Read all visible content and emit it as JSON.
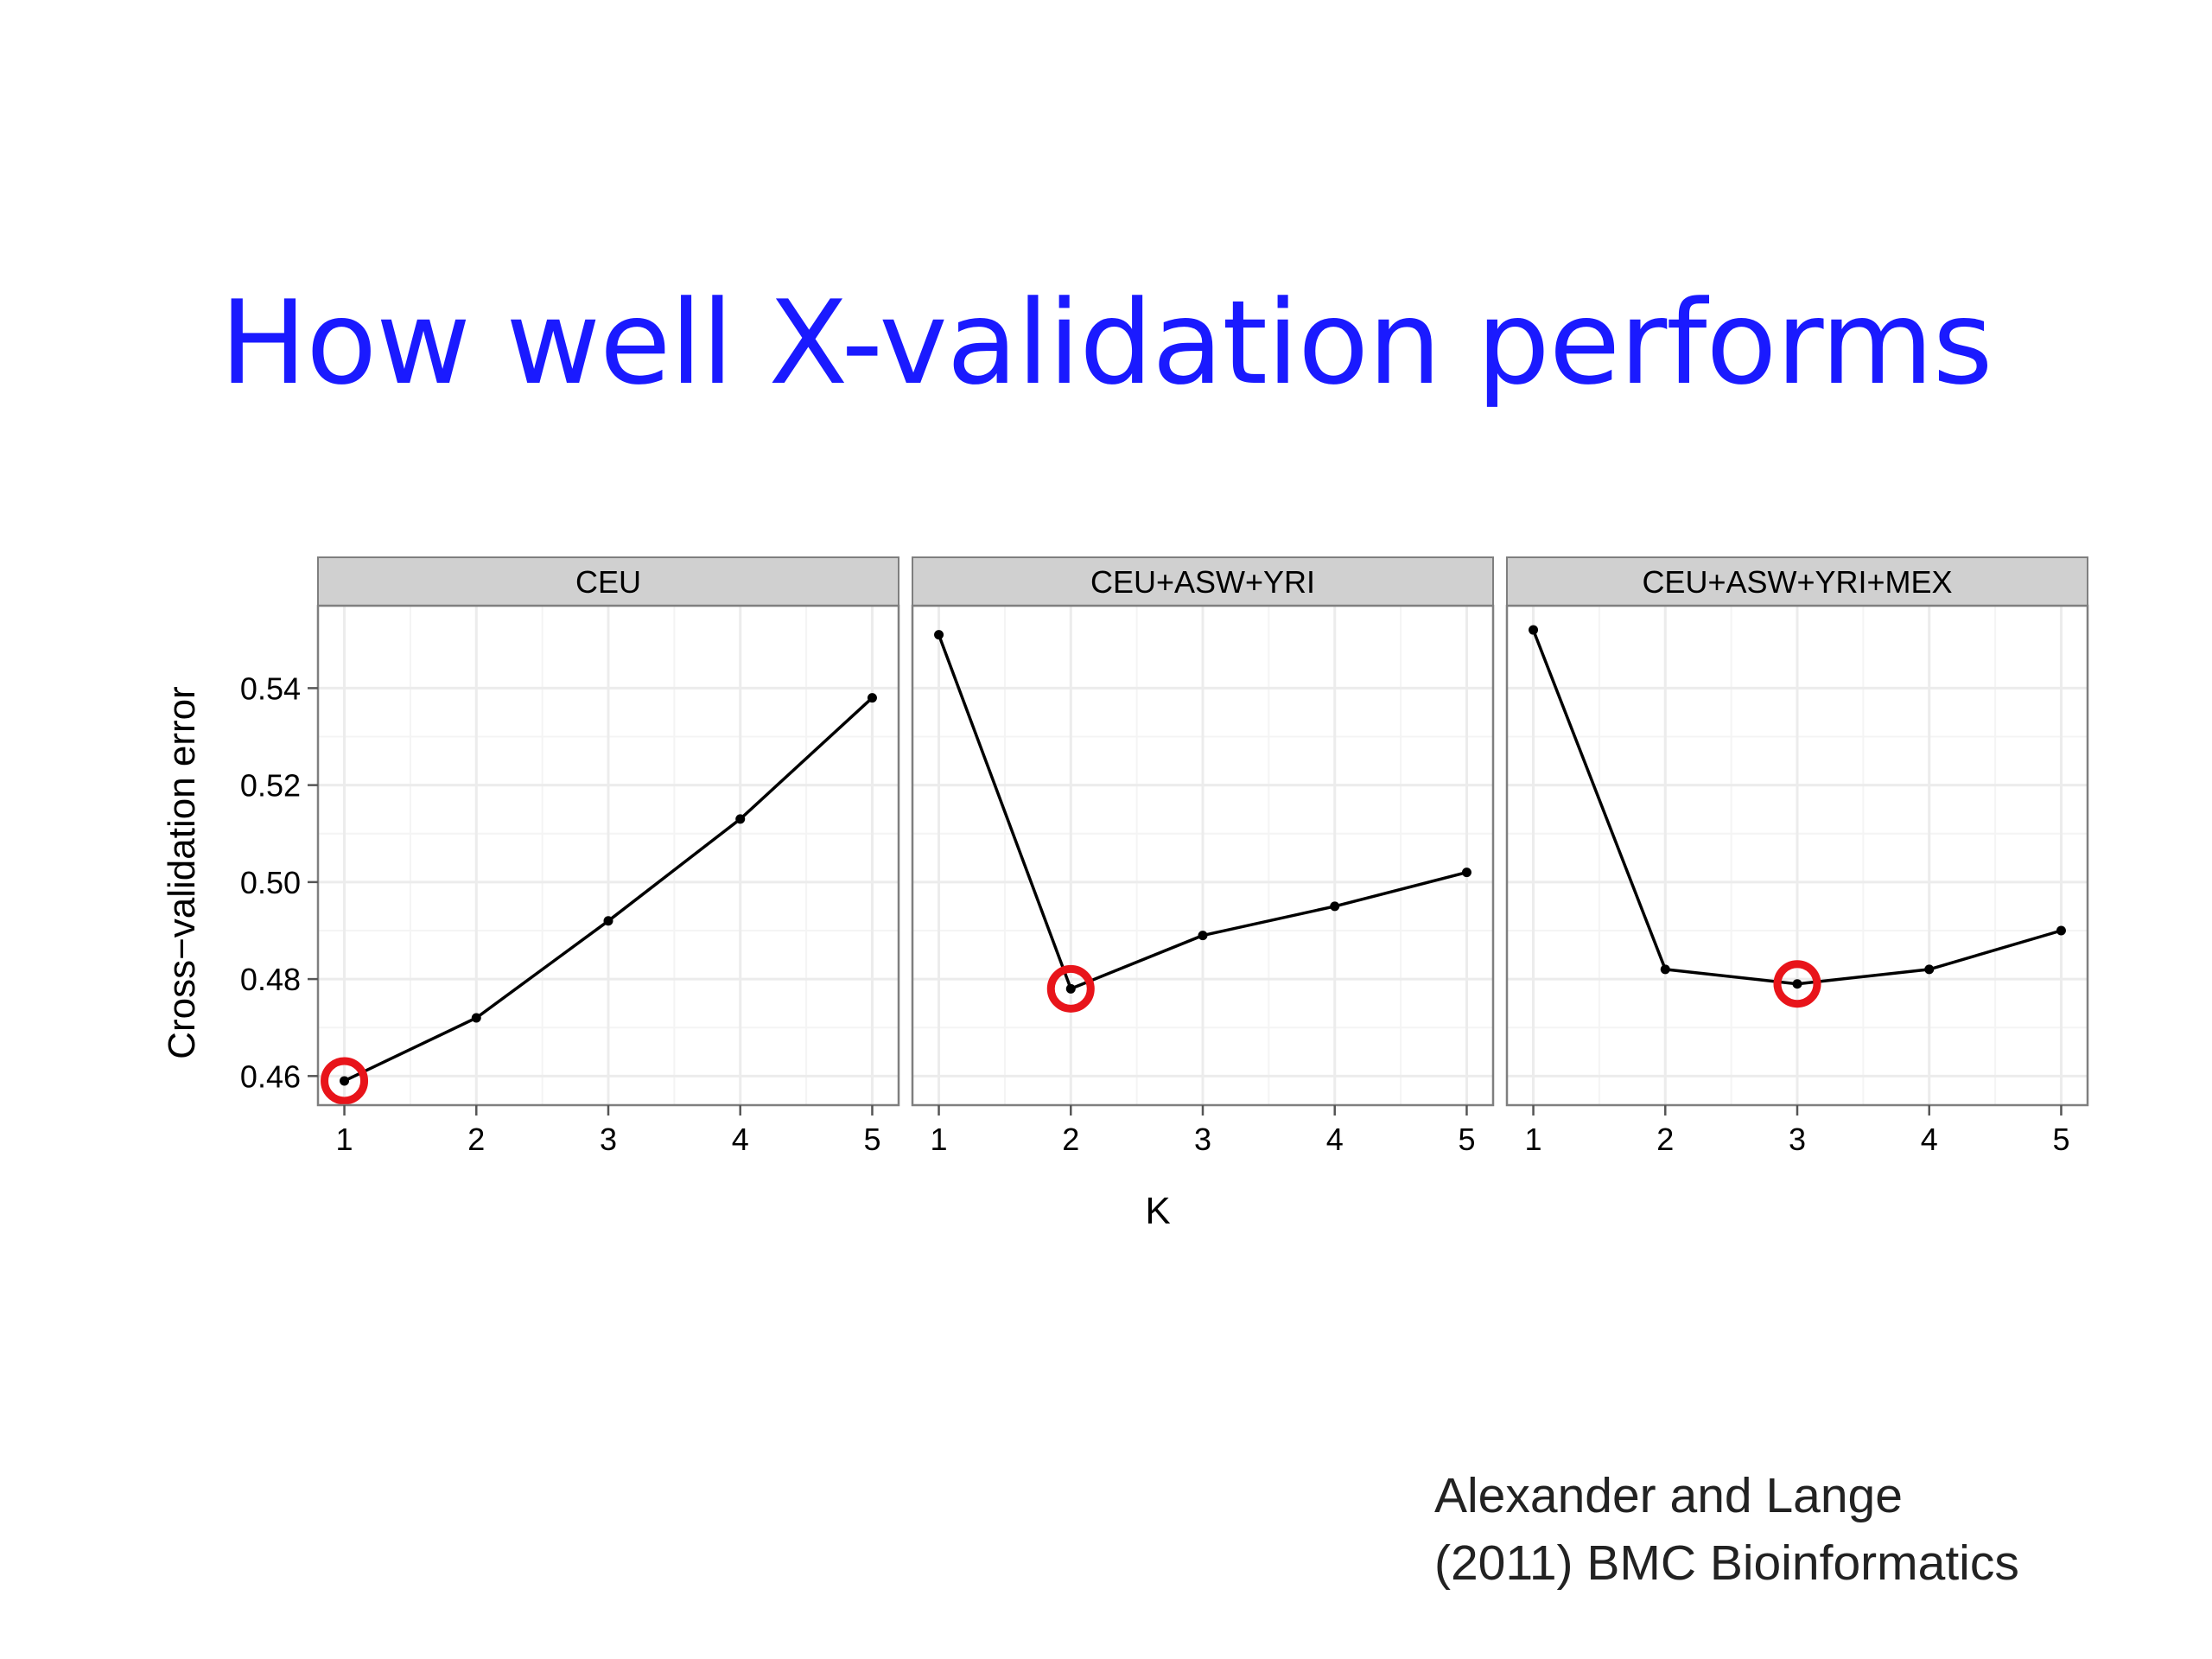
{
  "slide": {
    "title": "How well X-validation performs",
    "citation_line1": "Alexander and Lange",
    "citation_line2": "(2011) BMC Bioinformatics",
    "title_color": "#1a1aff"
  },
  "chart_data": {
    "type": "line",
    "facet_by": "population",
    "xlabel": "K",
    "ylabel": "Cross−validation error",
    "x": [
      1,
      2,
      3,
      4,
      5
    ],
    "xticks": [
      "1",
      "2",
      "3",
      "4",
      "5"
    ],
    "xlim": [
      0.8,
      5.2
    ],
    "yticks": [
      "0.46",
      "0.48",
      "0.50",
      "0.52",
      "0.54"
    ],
    "ytick_values": [
      0.46,
      0.48,
      0.5,
      0.52,
      0.54
    ],
    "ylim": [
      0.454,
      0.557
    ],
    "grid": true,
    "panels": [
      {
        "name": "CEU",
        "values": [
          0.459,
          0.472,
          0.492,
          0.513,
          0.538
        ],
        "highlight_k": 1
      },
      {
        "name": "CEU+ASW+YRI",
        "values": [
          0.551,
          0.478,
          0.489,
          0.495,
          0.502
        ],
        "highlight_k": 2
      },
      {
        "name": "CEU+ASW+YRI+MEX",
        "values": [
          0.552,
          0.482,
          0.479,
          0.482,
          0.49
        ],
        "highlight_k": 3
      }
    ],
    "colors": {
      "line": "#000000",
      "highlight": "#e8141a",
      "strip": "#d0d0d0",
      "grid": "#ececec"
    }
  }
}
